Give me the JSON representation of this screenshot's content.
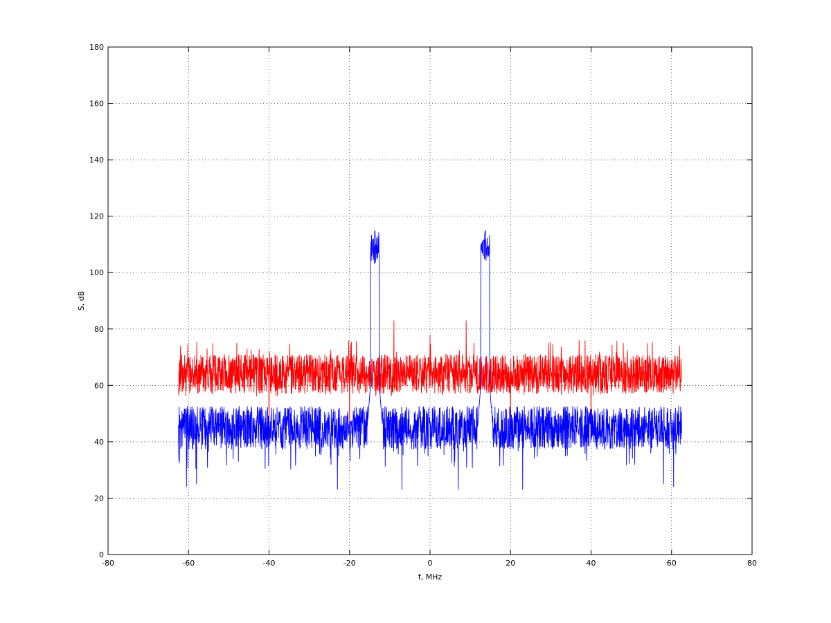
{
  "chart_data": {
    "type": "line",
    "title": "",
    "xlabel": "f, MHz",
    "ylabel": "S, dB",
    "xlim": [
      -80,
      80
    ],
    "ylim": [
      0,
      180
    ],
    "xticks": [
      -80,
      -60,
      -40,
      -20,
      0,
      20,
      40,
      60,
      80
    ],
    "yticks": [
      0,
      20,
      40,
      60,
      80,
      100,
      120,
      140,
      160,
      180
    ],
    "grid": true,
    "x_range": [
      -62.5,
      62.5
    ],
    "series": [
      {
        "color": "#ff0000",
        "baseline_mean": 64,
        "noise_band": [
          56,
          76
        ],
        "spikes": [
          {
            "x": -62,
            "y": 74
          },
          {
            "x": -54,
            "y": 75
          },
          {
            "x": -48,
            "y": 75
          },
          {
            "x": -9,
            "y": 83
          },
          {
            "x": 0,
            "y": 78
          },
          {
            "x": 9,
            "y": 83
          },
          {
            "x": 48,
            "y": 75
          },
          {
            "x": 54,
            "y": 75
          },
          {
            "x": 62,
            "y": 74
          }
        ],
        "dips": [
          {
            "x": -40,
            "y": 42
          },
          {
            "x": -20,
            "y": 46
          },
          {
            "x": 20,
            "y": 46
          },
          {
            "x": 40,
            "y": 42
          }
        ]
      },
      {
        "color": "#0000ff",
        "baseline_mean": 45,
        "noise_band": [
          30,
          52
        ],
        "peaks": [
          {
            "x_start": -14.8,
            "x_end": -12.6,
            "level": 107,
            "max": 115
          },
          {
            "x_start": 12.6,
            "x_end": 14.8,
            "level": 107,
            "max": 115
          }
        ],
        "dips": [
          {
            "x": -60.5,
            "y": 24
          },
          {
            "x": -58,
            "y": 25
          },
          {
            "x": -23,
            "y": 23
          },
          {
            "x": -7,
            "y": 23
          },
          {
            "x": 7,
            "y": 23
          },
          {
            "x": 23,
            "y": 23
          },
          {
            "x": 58,
            "y": 25
          },
          {
            "x": 60.5,
            "y": 24
          }
        ]
      }
    ]
  }
}
